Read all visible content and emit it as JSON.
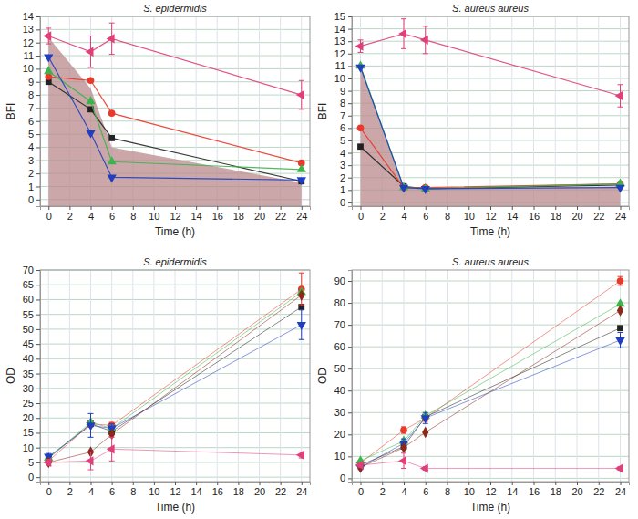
{
  "chart_data": [
    {
      "type": "line",
      "title": "S. epidermidis",
      "x_label": "Time (h)",
      "y_label": "BFI",
      "x": [
        0,
        4,
        6,
        24
      ],
      "xlim": [
        -0.8,
        24.8
      ],
      "xticks": [
        0,
        2,
        4,
        6,
        8,
        10,
        12,
        14,
        16,
        18,
        20,
        22,
        24
      ],
      "ylim": [
        -0.5,
        14
      ],
      "yticks": [
        0,
        1,
        2,
        3,
        4,
        5,
        6,
        7,
        8,
        9,
        10,
        11,
        12,
        13,
        14
      ],
      "grid": true,
      "series": [
        {
          "type": "area",
          "color": "#b98a8c",
          "values": [
            12.4,
            8.5,
            4.0,
            1.3
          ]
        },
        {
          "color": "#222222",
          "marker": "square",
          "values": [
            9.0,
            6.9,
            4.7,
            1.4
          ]
        },
        {
          "color": "#e8392b",
          "marker": "circle",
          "values": [
            9.4,
            9.1,
            6.6,
            2.8
          ]
        },
        {
          "color": "#3cb44b",
          "marker": "triangle-up",
          "values": [
            9.8,
            7.5,
            2.9,
            2.3
          ]
        },
        {
          "color": "#1f3fbf",
          "marker": "triangle-down",
          "values": [
            10.9,
            5.1,
            1.7,
            1.5
          ]
        },
        {
          "color": "#e0407a",
          "marker": "triangle-left",
          "values": [
            12.5,
            11.3,
            12.3,
            8.0
          ],
          "errors": [
            0.6,
            1.2,
            1.2,
            1.1
          ]
        }
      ]
    },
    {
      "type": "line",
      "title": "S. aureus aureus",
      "x_label": "Time (h)",
      "y_label": "BFI",
      "x": [
        0,
        4,
        6,
        24
      ],
      "xlim": [
        -0.8,
        24.8
      ],
      "xticks": [
        0,
        2,
        4,
        6,
        8,
        10,
        12,
        14,
        16,
        18,
        20,
        22,
        24
      ],
      "ylim": [
        -0.3,
        15
      ],
      "yticks": [
        0,
        1,
        2,
        3,
        4,
        5,
        6,
        7,
        8,
        9,
        10,
        11,
        12,
        13,
        14,
        15
      ],
      "grid": true,
      "series": [
        {
          "type": "area",
          "color": "#b98a8c",
          "values": [
            11.0,
            1.2,
            1.1,
            1.3
          ]
        },
        {
          "color": "#222222",
          "marker": "square",
          "values": [
            4.5,
            1.3,
            1.1,
            1.4
          ]
        },
        {
          "color": "#e8392b",
          "marker": "circle",
          "values": [
            6.0,
            1.2,
            1.2,
            1.5
          ]
        },
        {
          "color": "#3cb44b",
          "marker": "triangle-up",
          "values": [
            11.0,
            1.2,
            1.1,
            1.5
          ]
        },
        {
          "color": "#1f3fbf",
          "marker": "triangle-down",
          "values": [
            10.9,
            1.2,
            1.1,
            1.2
          ]
        },
        {
          "color": "#e0407a",
          "marker": "triangle-left",
          "values": [
            12.6,
            13.6,
            13.1,
            8.6
          ],
          "errors": [
            0.5,
            1.2,
            1.1,
            0.9
          ]
        }
      ]
    },
    {
      "type": "line",
      "title": "S. epidermidis",
      "x_label": "Time (h)",
      "y_label": "OD",
      "x": [
        0,
        4,
        6,
        24
      ],
      "xlim": [
        -0.8,
        24.8
      ],
      "xticks": [
        0,
        2,
        4,
        6,
        8,
        10,
        12,
        14,
        16,
        18,
        20,
        22,
        24
      ],
      "ylim": [
        -1.5,
        70
      ],
      "yticks": [
        0,
        5,
        10,
        15,
        20,
        25,
        30,
        35,
        40,
        45,
        50,
        55,
        60,
        65,
        70
      ],
      "grid": true,
      "series": [
        {
          "color": "#222222",
          "marker": "square",
          "values": [
            6.5,
            18.0,
            15.5,
            57.5
          ]
        },
        {
          "color": "#e8392b",
          "marker": "circle",
          "values": [
            5.5,
            18.0,
            17.5,
            63.5
          ],
          "errors": [
            0.5,
            1.0,
            1.0,
            5.5
          ]
        },
        {
          "color": "#3cb44b",
          "marker": "triangle-up",
          "values": [
            6.5,
            18.5,
            16.5,
            62.5
          ]
        },
        {
          "color": "#1f3fbf",
          "marker": "triangle-down",
          "values": [
            7.0,
            17.5,
            16.5,
            51.5
          ],
          "errors": [
            1.0,
            4.0,
            1.5,
            5.0
          ]
        },
        {
          "color": "#8b2a1a",
          "marker": "diamond",
          "values": [
            5.0,
            8.5,
            14.5,
            61.5
          ]
        },
        {
          "color": "#e0407a",
          "marker": "triangle-left",
          "values": [
            5.0,
            5.5,
            9.5,
            7.5
          ],
          "errors": [
            1.0,
            3.0,
            4.0,
            1.0
          ]
        }
      ]
    },
    {
      "type": "line",
      "title": "S. aureus aureus",
      "x_label": "Time (h)",
      "y_label": "OD",
      "x": [
        0,
        4,
        6,
        24
      ],
      "xlim": [
        -0.8,
        24.8
      ],
      "xticks": [
        0,
        2,
        4,
        6,
        8,
        10,
        12,
        14,
        16,
        18,
        20,
        22,
        24
      ],
      "ylim": [
        -1.5,
        95
      ],
      "yticks": [
        0,
        10,
        20,
        30,
        40,
        50,
        60,
        70,
        80,
        90
      ],
      "grid": true,
      "series": [
        {
          "color": "#222222",
          "marker": "square",
          "values": [
            6.0,
            14.5,
            28.0,
            68.5
          ]
        },
        {
          "color": "#e8392b",
          "marker": "circle",
          "values": [
            7.0,
            22.0,
            27.5,
            90.0
          ],
          "errors": [
            1.0,
            1.5,
            1.5,
            2.0
          ]
        },
        {
          "color": "#3cb44b",
          "marker": "triangle-up",
          "values": [
            8.0,
            17.0,
            28.5,
            79.5
          ]
        },
        {
          "color": "#1f3fbf",
          "marker": "triangle-down",
          "values": [
            5.0,
            16.0,
            27.5,
            63.0
          ],
          "errors": [
            1.0,
            2.0,
            2.5,
            3.5
          ]
        },
        {
          "color": "#8b2a1a",
          "marker": "diamond",
          "values": [
            5.0,
            14.0,
            21.0,
            76.5
          ]
        },
        {
          "color": "#e0407a",
          "marker": "triangle-left",
          "values": [
            6.0,
            8.0,
            4.5,
            4.5
          ],
          "errors": [
            1.0,
            3.5,
            0.8,
            0.8
          ]
        }
      ]
    }
  ]
}
